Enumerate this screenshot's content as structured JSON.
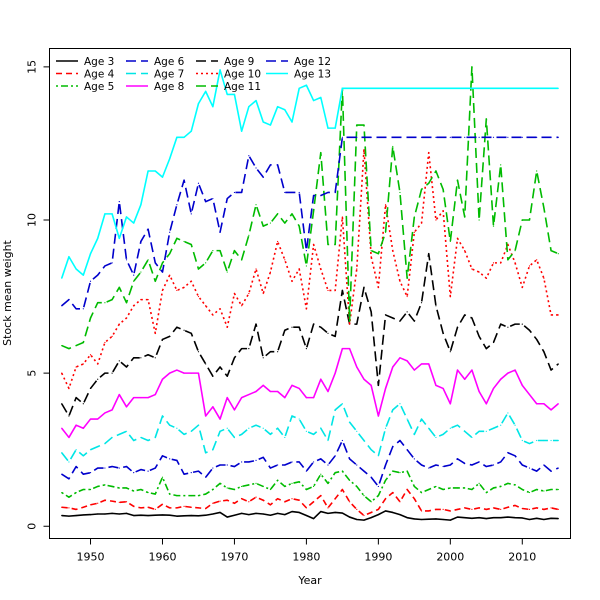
{
  "chart_data": {
    "type": "line",
    "title": "",
    "xlabel": "Year",
    "ylabel": "Stock mean weight",
    "xlim": [
      1944.3,
      2016.7
    ],
    "ylim": [
      -0.4,
      15.6
    ],
    "x_ticks": [
      1950,
      1960,
      1970,
      1980,
      1990,
      2000,
      2010
    ],
    "y_ticks": [
      0,
      5,
      10,
      15
    ],
    "legend_position": "top-left",
    "x": [
      1946,
      1947,
      1948,
      1949,
      1950,
      1951,
      1952,
      1953,
      1954,
      1955,
      1956,
      1957,
      1958,
      1959,
      1960,
      1961,
      1962,
      1963,
      1964,
      1965,
      1966,
      1967,
      1968,
      1969,
      1970,
      1971,
      1972,
      1973,
      1974,
      1975,
      1976,
      1977,
      1978,
      1979,
      1980,
      1981,
      1982,
      1983,
      1984,
      1985,
      1986,
      1987,
      1988,
      1989,
      1990,
      1991,
      1992,
      1993,
      1994,
      1995,
      1996,
      1997,
      1998,
      1999,
      2000,
      2001,
      2002,
      2003,
      2004,
      2005,
      2006,
      2007,
      2008,
      2009,
      2010,
      2011,
      2012,
      2013,
      2014,
      2015
    ],
    "series": [
      {
        "name": "Age 3",
        "color": "#000000",
        "dash": "solid",
        "values": [
          0.35,
          0.33,
          0.35,
          0.37,
          0.38,
          0.4,
          0.4,
          0.42,
          0.4,
          0.42,
          0.35,
          0.36,
          0.35,
          0.36,
          0.37,
          0.36,
          0.33,
          0.34,
          0.35,
          0.34,
          0.36,
          0.4,
          0.45,
          0.3,
          0.36,
          0.42,
          0.38,
          0.42,
          0.4,
          0.36,
          0.42,
          0.38,
          0.48,
          0.45,
          0.35,
          0.25,
          0.48,
          0.42,
          0.45,
          0.43,
          0.3,
          0.22,
          0.2,
          0.28,
          0.38,
          0.5,
          0.45,
          0.38,
          0.28,
          0.24,
          0.22,
          0.23,
          0.24,
          0.22,
          0.2,
          0.3,
          0.28,
          0.26,
          0.28,
          0.25,
          0.28,
          0.28,
          0.3,
          0.28,
          0.27,
          0.22,
          0.26,
          0.22,
          0.26,
          0.25
        ]
      },
      {
        "name": "Age 4",
        "color": "#ff0000",
        "dash": "dashed",
        "values": [
          0.62,
          0.6,
          0.55,
          0.62,
          0.7,
          0.75,
          0.85,
          0.82,
          0.78,
          0.8,
          0.65,
          0.6,
          0.62,
          0.55,
          0.72,
          0.6,
          0.6,
          0.65,
          0.62,
          0.6,
          0.58,
          0.75,
          0.82,
          0.85,
          0.75,
          0.9,
          0.8,
          0.95,
          0.85,
          0.7,
          0.9,
          0.8,
          0.9,
          0.85,
          0.6,
          0.8,
          1.0,
          0.6,
          0.9,
          1.2,
          0.8,
          0.55,
          0.35,
          0.45,
          0.55,
          0.9,
          1.1,
          0.8,
          1.2,
          0.9,
          0.5,
          0.5,
          0.55,
          0.55,
          0.5,
          0.55,
          0.6,
          0.55,
          0.6,
          0.55,
          0.6,
          0.55,
          0.62,
          0.68,
          0.58,
          0.55,
          0.6,
          0.55,
          0.6,
          0.55
        ]
      },
      {
        "name": "Age 5",
        "color": "#00bb00",
        "dash": "dashdot",
        "values": [
          1.1,
          0.95,
          1.1,
          1.2,
          1.2,
          1.3,
          1.35,
          1.3,
          1.25,
          1.25,
          1.15,
          1.2,
          1.1,
          1.05,
          1.6,
          1.05,
          1.0,
          1.0,
          1.0,
          1.0,
          1.05,
          1.2,
          1.4,
          1.25,
          1.2,
          1.3,
          1.35,
          1.4,
          1.3,
          1.2,
          1.5,
          1.3,
          1.4,
          1.45,
          1.2,
          1.3,
          1.7,
          1.4,
          1.75,
          1.8,
          1.5,
          1.3,
          1.0,
          0.8,
          1.0,
          1.5,
          1.8,
          1.75,
          1.8,
          1.3,
          1.1,
          1.2,
          1.3,
          1.2,
          1.25,
          1.25,
          1.25,
          1.2,
          1.4,
          1.1,
          1.25,
          1.3,
          1.4,
          1.35,
          1.2,
          1.1,
          1.2,
          1.15,
          1.2,
          1.2
        ]
      },
      {
        "name": "Age 6",
        "color": "#0000cc",
        "dash": "longdash",
        "values": [
          1.7,
          1.55,
          1.95,
          1.7,
          1.75,
          1.9,
          1.9,
          1.95,
          1.9,
          1.95,
          1.75,
          1.85,
          1.8,
          1.9,
          2.3,
          2.2,
          2.15,
          1.7,
          1.75,
          1.8,
          1.6,
          1.9,
          2.0,
          2.0,
          1.95,
          2.1,
          2.1,
          2.15,
          2.25,
          1.9,
          2.0,
          2.0,
          2.1,
          2.1,
          1.8,
          2.1,
          2.2,
          2.0,
          2.3,
          2.8,
          2.2,
          2.0,
          1.8,
          1.6,
          1.3,
          2.0,
          2.6,
          2.8,
          2.5,
          2.2,
          2.0,
          1.9,
          2.0,
          1.95,
          2.0,
          2.2,
          2.05,
          2.0,
          2.1,
          1.95,
          2.0,
          2.1,
          2.4,
          2.3,
          2.0,
          1.9,
          1.8,
          2.0,
          1.8,
          1.9
        ]
      },
      {
        "name": "Age 7",
        "color": "#00e5e5",
        "dash": "longdash",
        "values": [
          2.4,
          2.1,
          2.5,
          2.3,
          2.5,
          2.6,
          2.7,
          2.9,
          3.0,
          3.1,
          2.8,
          2.9,
          2.8,
          2.9,
          3.6,
          3.3,
          3.2,
          3.0,
          3.1,
          3.3,
          2.4,
          2.5,
          3.1,
          3.2,
          2.9,
          3.0,
          3.2,
          3.3,
          3.2,
          3.0,
          3.2,
          2.9,
          3.6,
          3.5,
          3.1,
          3.0,
          3.2,
          2.8,
          3.8,
          4.0,
          3.4,
          3.1,
          2.8,
          2.5,
          2.3,
          3.2,
          3.8,
          4.0,
          3.5,
          3.0,
          3.5,
          3.2,
          2.9,
          3.0,
          3.2,
          3.3,
          3.1,
          2.9,
          3.1,
          3.1,
          3.2,
          3.3,
          3.7,
          3.3,
          2.8,
          2.7,
          2.8,
          2.8,
          2.8,
          2.8
        ]
      },
      {
        "name": "Age 8",
        "color": "#ff00ff",
        "dash": "solid",
        "values": [
          3.2,
          2.9,
          3.3,
          3.2,
          3.5,
          3.5,
          3.7,
          3.8,
          4.3,
          3.9,
          4.2,
          4.2,
          4.2,
          4.3,
          4.8,
          5.0,
          5.1,
          5.0,
          5.0,
          5.0,
          3.6,
          3.9,
          3.5,
          4.2,
          3.8,
          4.2,
          4.3,
          4.4,
          4.6,
          4.4,
          4.4,
          4.2,
          4.6,
          4.5,
          4.2,
          4.2,
          4.8,
          4.4,
          5.0,
          5.8,
          5.8,
          5.2,
          4.8,
          4.6,
          3.6,
          4.5,
          5.2,
          5.5,
          5.4,
          5.1,
          5.3,
          5.3,
          4.6,
          4.5,
          4.0,
          5.1,
          4.8,
          5.1,
          4.4,
          4.0,
          4.5,
          4.8,
          5.0,
          5.1,
          4.6,
          4.3,
          4.0,
          4.0,
          3.8,
          4.0
        ]
      },
      {
        "name": "Age 9",
        "color": "#000000",
        "dash": "longdash",
        "values": [
          4.0,
          3.6,
          4.2,
          4.0,
          4.5,
          4.8,
          5.0,
          5.0,
          5.4,
          5.2,
          5.5,
          5.5,
          5.6,
          5.5,
          6.1,
          6.2,
          6.5,
          6.4,
          6.3,
          5.7,
          5.3,
          4.9,
          5.2,
          4.9,
          5.5,
          5.8,
          5.8,
          6.6,
          5.5,
          5.7,
          5.7,
          6.4,
          6.5,
          6.5,
          5.8,
          6.6,
          6.5,
          6.3,
          6.2,
          7.7,
          6.6,
          6.6,
          7.8,
          7.0,
          4.6,
          6.9,
          6.8,
          6.7,
          7.0,
          6.7,
          7.3,
          8.9,
          7.2,
          6.3,
          5.7,
          6.5,
          6.9,
          6.8,
          6.2,
          5.8,
          6.0,
          6.6,
          6.5,
          6.6,
          6.6,
          6.4,
          6.1,
          5.7,
          5.1,
          5.3
        ]
      },
      {
        "name": "Age 10",
        "color": "#ff0000",
        "dash": "dotted",
        "values": [
          5.0,
          4.5,
          5.2,
          5.3,
          5.6,
          5.3,
          6.0,
          6.2,
          6.6,
          6.8,
          7.2,
          7.4,
          7.4,
          6.3,
          7.7,
          8.2,
          7.7,
          7.8,
          8.0,
          7.5,
          7.2,
          6.9,
          7.1,
          6.5,
          7.6,
          7.2,
          7.6,
          8.4,
          7.6,
          8.3,
          9.3,
          8.7,
          8.0,
          8.4,
          7.1,
          9.2,
          8.4,
          7.7,
          7.7,
          10.1,
          6.6,
          8.4,
          12.3,
          8.8,
          7.8,
          10.5,
          9.0,
          8.0,
          7.5,
          9.6,
          9.9,
          12.2,
          10.0,
          10.3,
          7.5,
          9.4,
          9.0,
          8.4,
          8.3,
          8.1,
          8.6,
          8.6,
          9.2,
          8.6,
          7.8,
          8.5,
          8.7,
          8.1,
          6.9,
          6.9
        ]
      },
      {
        "name": "Age 11",
        "color": "#00bb00",
        "dash": "longdash",
        "values": [
          5.9,
          5.8,
          5.9,
          6.0,
          6.8,
          7.3,
          7.3,
          7.4,
          7.8,
          7.3,
          8.0,
          8.3,
          8.7,
          8.0,
          8.6,
          8.9,
          9.4,
          9.3,
          9.2,
          8.4,
          8.6,
          9.0,
          9.0,
          8.3,
          9.0,
          8.7,
          9.5,
          10.5,
          9.8,
          9.9,
          10.2,
          9.9,
          10.2,
          9.8,
          8.5,
          10.3,
          12.2,
          9.2,
          9.2,
          14.3,
          6.7,
          13.1,
          13.1,
          9.0,
          8.9,
          9.6,
          12.4,
          10.9,
          8.1,
          10.1,
          11.0,
          11.2,
          11.6,
          11.0,
          9.3,
          11.3,
          10.1,
          15.0,
          10.0,
          13.3,
          9.8,
          11.8,
          8.7,
          9.0,
          10.0,
          10.0,
          11.6,
          10.4,
          9.0,
          8.9
        ]
      },
      {
        "name": "Age 12",
        "color": "#0000cc",
        "dash": "longdash",
        "values": [
          7.2,
          7.4,
          7.1,
          7.1,
          8.0,
          8.2,
          8.5,
          8.6,
          10.6,
          8.7,
          8.2,
          9.3,
          9.7,
          8.6,
          8.3,
          9.6,
          10.5,
          11.3,
          10.2,
          11.2,
          10.6,
          10.7,
          9.6,
          10.7,
          10.9,
          10.9,
          12.1,
          11.7,
          11.4,
          11.8,
          11.8,
          10.9,
          10.9,
          10.9,
          9.0,
          10.8,
          10.8,
          10.9,
          10.9,
          12.7,
          12.7,
          12.7,
          12.7,
          12.7,
          12.7,
          12.7,
          12.7,
          12.7,
          12.7,
          12.7,
          12.7,
          12.7,
          12.7,
          12.7,
          12.7,
          12.7,
          12.7,
          12.7,
          12.7,
          12.7,
          12.7,
          12.7,
          12.7,
          12.7,
          12.7,
          12.7,
          12.7,
          12.7,
          12.7,
          12.7
        ]
      },
      {
        "name": "Age 13",
        "color": "#00ffff",
        "dash": "solid",
        "values": [
          8.1,
          8.8,
          8.4,
          8.2,
          8.9,
          9.4,
          10.2,
          10.2,
          9.4,
          10.1,
          9.9,
          10.5,
          11.6,
          11.6,
          11.4,
          12.0,
          12.7,
          12.7,
          12.9,
          13.8,
          14.2,
          13.7,
          14.9,
          14.1,
          14.1,
          12.9,
          13.7,
          13.9,
          13.2,
          13.1,
          13.7,
          13.6,
          13.2,
          14.3,
          14.4,
          13.9,
          14.0,
          13.0,
          13.0,
          14.3,
          14.3,
          14.3,
          14.3,
          14.3,
          14.3,
          14.3,
          14.3,
          14.3,
          14.3,
          14.3,
          14.3,
          14.3,
          14.3,
          14.3,
          14.3,
          14.3,
          14.3,
          14.3,
          14.3,
          14.3,
          14.3,
          14.3,
          14.3,
          14.3,
          14.3,
          14.3,
          14.3,
          14.3,
          14.3,
          14.3
        ]
      }
    ]
  }
}
